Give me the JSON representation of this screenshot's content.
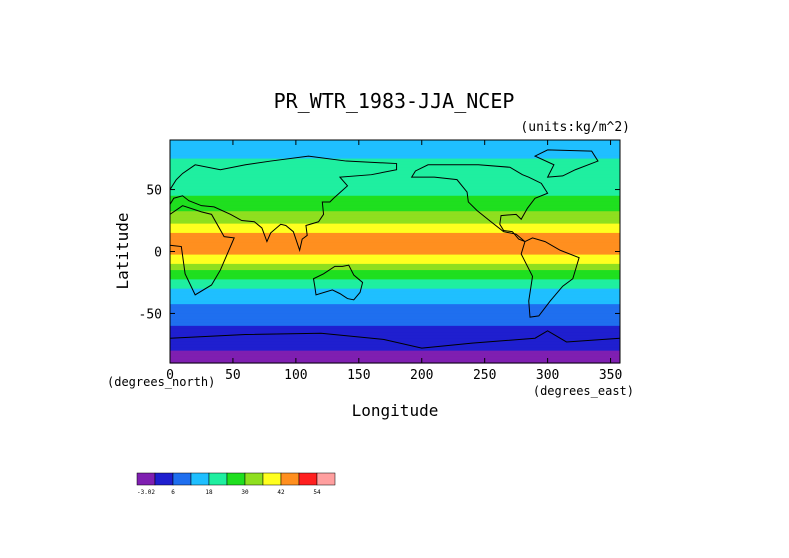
{
  "chart_data": {
    "type": "heatmap",
    "title": "PR_WTR_1983-JJA_NCEP",
    "units_note": "(units:kg/m^2)",
    "xlabel": "Longitude",
    "ylabel": "Latitude",
    "x_units_note": "(degrees_east)",
    "y_units_note": "(degrees_north)",
    "xlim": [
      0,
      357.5
    ],
    "ylim": [
      -90,
      90
    ],
    "x_ticks": [
      0,
      50,
      100,
      150,
      200,
      250,
      300,
      350
    ],
    "y_ticks": [
      -50,
      0,
      50
    ],
    "colorbar": {
      "colors": [
        "#7f1fb1",
        "#1f1fcf",
        "#1f6fef",
        "#1fbfff",
        "#1fefa0",
        "#1fdf1f",
        "#8fdf1f",
        "#ffff1f",
        "#ff8f1f",
        "#ff1f1f",
        "#ff9f9f"
      ],
      "tick_labels": [
        "-3.02",
        "6",
        "18",
        "30",
        "42",
        "54"
      ]
    },
    "zonal_mean_profile": {
      "lat": [
        90,
        80,
        70,
        60,
        50,
        40,
        30,
        20,
        10,
        0,
        -10,
        -20,
        -30,
        -40,
        -50,
        -60,
        -70,
        -80,
        -90
      ],
      "value": [
        16,
        17,
        19,
        22,
        22,
        26,
        32,
        38,
        46,
        44,
        36,
        25,
        18,
        13,
        9,
        6,
        2,
        0,
        -1
      ]
    },
    "grid": false,
    "coastlines": true
  }
}
